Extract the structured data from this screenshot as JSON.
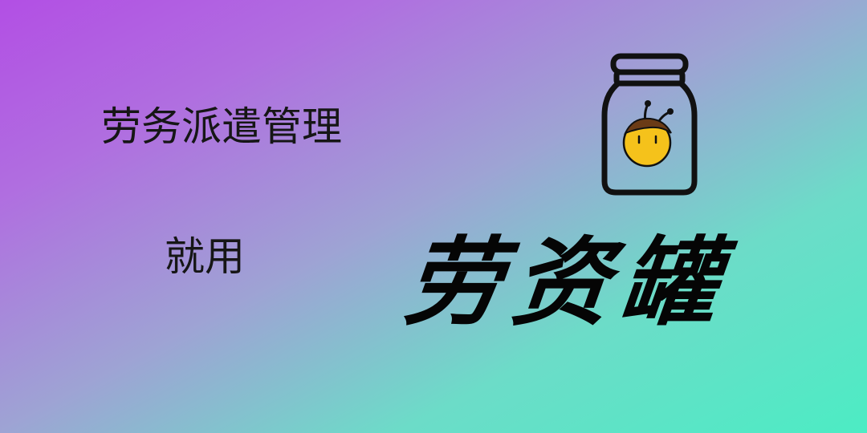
{
  "banner": {
    "tagline_line1": "劳务派遣管理",
    "tagline_line2": "就用",
    "brand_name": "劳资罐",
    "logo_icon": "jar-with-bee-icon",
    "colors": {
      "gradient_start": "#b24fe4",
      "gradient_mid": "#9ea3d4",
      "gradient_end": "#4cecc4",
      "text": "#161616",
      "bee_body": "#f5c21b",
      "outline": "#111111"
    }
  }
}
